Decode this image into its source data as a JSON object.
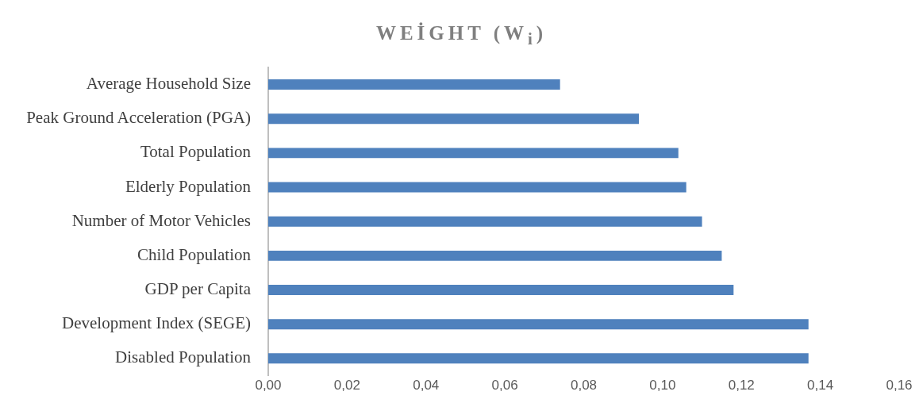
{
  "chart_data": {
    "type": "bar",
    "orientation": "horizontal",
    "title": "WEİGHT (W$_{i}$)",
    "categories": [
      "Average Household Size",
      "Peak Ground Acceleration (PGA)",
      "Total Population",
      "Elderly Population",
      "Number of Motor Vehicles",
      "Child Population",
      "GDP per Capita",
      "Development Index (SEGE)",
      "Disabled Population"
    ],
    "values": [
      0.074,
      0.094,
      0.104,
      0.106,
      0.11,
      0.115,
      0.118,
      0.137,
      0.137
    ],
    "color": "#4f81bd",
    "xlim": [
      0,
      0.16
    ],
    "xticks": [
      {
        "value": 0,
        "label": "0,00"
      },
      {
        "value": 0.02,
        "label": "0,02"
      },
      {
        "value": 0.04,
        "label": "0,04"
      },
      {
        "value": 0.06,
        "label": "0,06"
      },
      {
        "value": 0.08,
        "label": "0,08"
      },
      {
        "value": 0.1,
        "label": "0,10"
      },
      {
        "value": 0.12,
        "label": "0,12"
      },
      {
        "value": 0.14,
        "label": "0,14"
      },
      {
        "value": 0.16,
        "label": "0,16"
      }
    ],
    "grid": false,
    "legend": false
  }
}
